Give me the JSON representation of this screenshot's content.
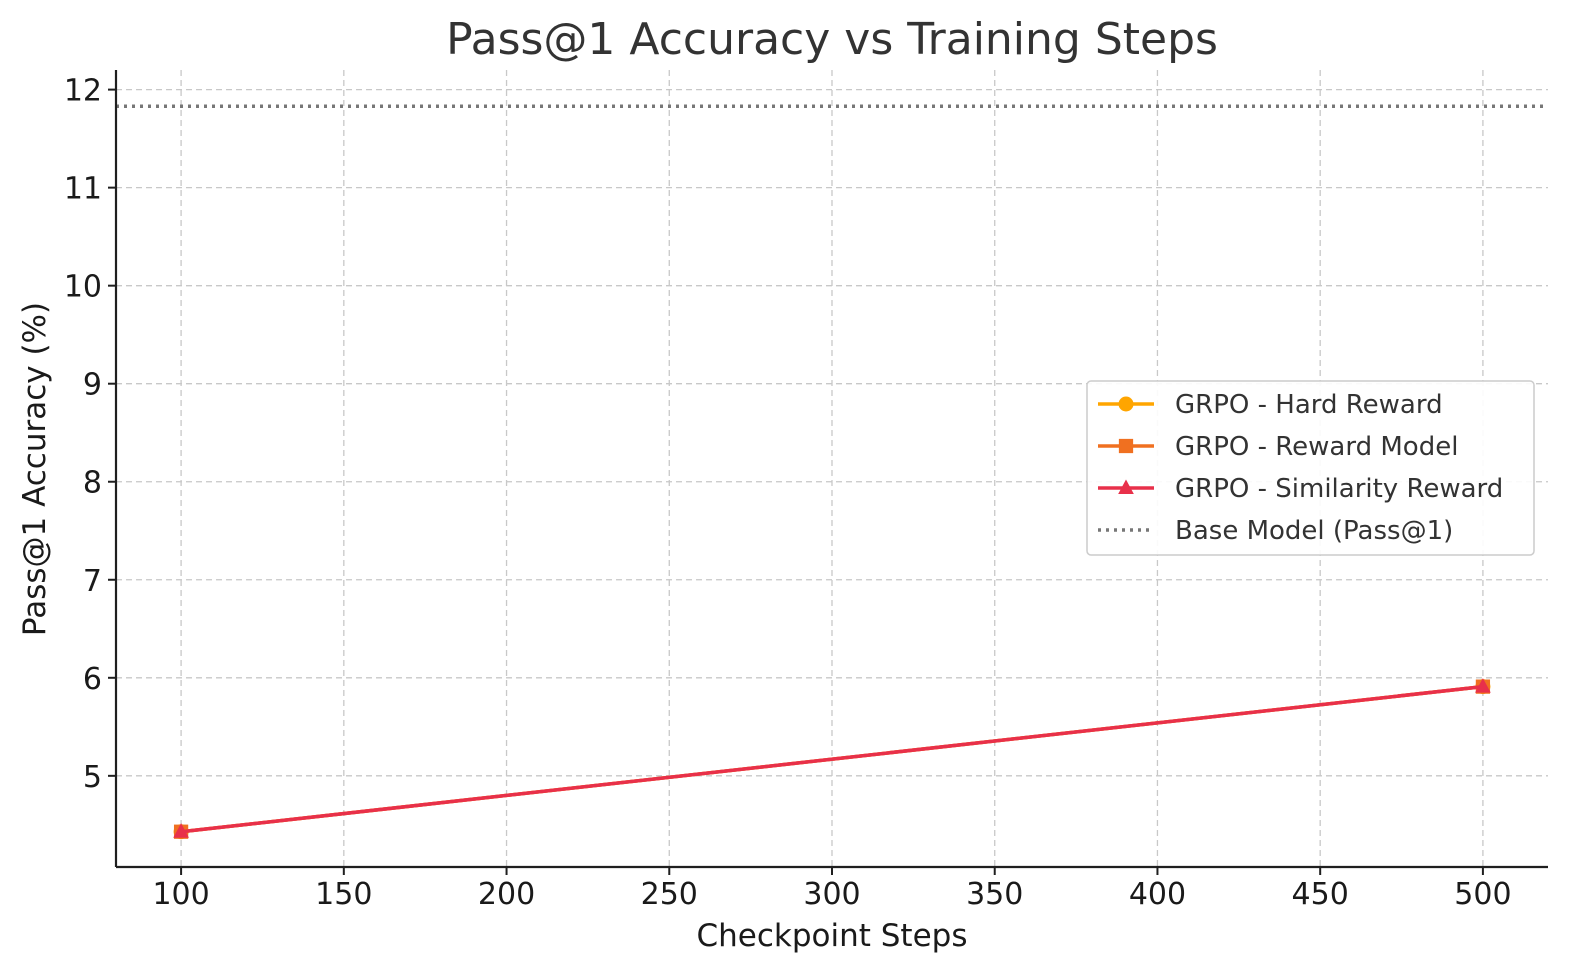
{
  "chart_data": {
    "type": "line",
    "title": "Pass@1 Accuracy vs Training Steps",
    "xlabel": "Checkpoint Steps",
    "ylabel": "Pass@1 Accuracy (%)",
    "xlim": [
      80,
      520
    ],
    "ylim": [
      4.07,
      12.2
    ],
    "xticks": [
      100,
      150,
      200,
      250,
      300,
      350,
      400,
      450,
      500
    ],
    "yticks": [
      5,
      6,
      7,
      8,
      9,
      10,
      11,
      12
    ],
    "grid": true,
    "legend_position": "center-right",
    "series": [
      {
        "name": "GRPO - Hard Reward",
        "color": "#FFA500",
        "marker": "circle",
        "x": [
          100,
          500
        ],
        "y": [
          4.43,
          5.91
        ]
      },
      {
        "name": "GRPO - Reward Model",
        "color": "#F07020",
        "marker": "square",
        "x": [
          100,
          500
        ],
        "y": [
          4.43,
          5.91
        ]
      },
      {
        "name": "GRPO - Similarity Reward",
        "color": "#E8304A",
        "marker": "triangle",
        "x": [
          100,
          500
        ],
        "y": [
          4.43,
          5.91
        ]
      }
    ],
    "reference_lines": [
      {
        "name": "Base Model (Pass@1)",
        "color": "#777777",
        "style": "dotted",
        "y": 11.83
      }
    ]
  }
}
